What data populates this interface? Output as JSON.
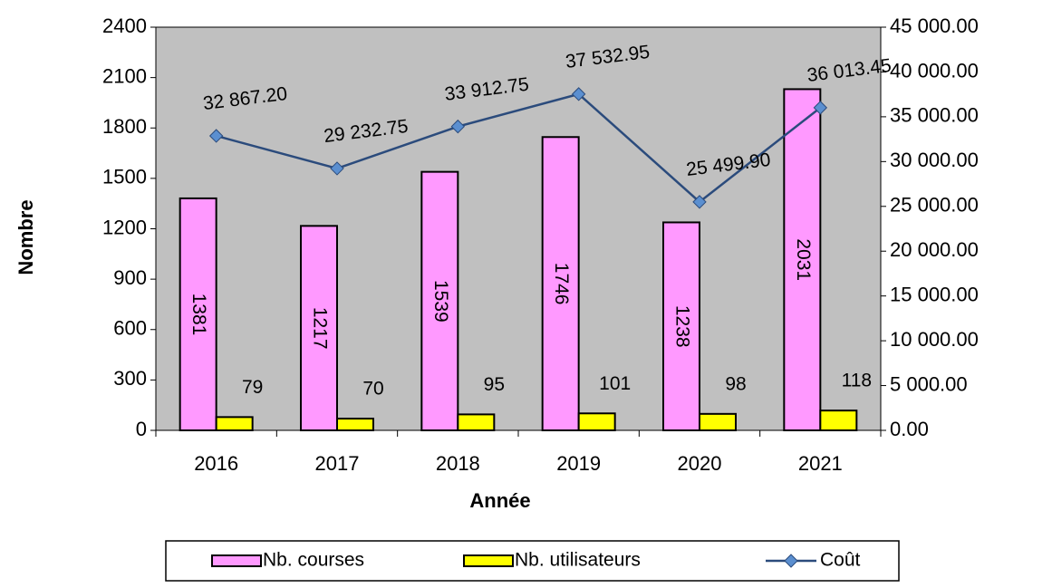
{
  "chart_data": {
    "type": "bar",
    "categories": [
      "2016",
      "2017",
      "2018",
      "2019",
      "2020",
      "2021"
    ],
    "x_label": "Année",
    "y_label": "Nombre",
    "series": [
      {
        "name": "Nb. courses",
        "color": "#ff99ff",
        "values": [
          1381,
          1217,
          1539,
          1746,
          1238,
          2031
        ]
      },
      {
        "name": "Nb. utilisateurs",
        "color": "#ffff00",
        "values": [
          79,
          70,
          95,
          101,
          98,
          118
        ]
      },
      {
        "name": "Coût",
        "color": "#2b4b7c",
        "type": "line",
        "axis": "y2",
        "values": [
          32867.2,
          29232.75,
          33912.75,
          37532.95,
          25499.9,
          36013.45
        ],
        "value_labels": [
          "32 867.20",
          "29 232.75",
          "33 912.75",
          "37 532.95",
          "25 499.90",
          "36 013.45"
        ]
      }
    ],
    "ylim": [
      0,
      2400
    ],
    "yticks": [
      0,
      300,
      600,
      900,
      1200,
      1500,
      1800,
      2100,
      2400
    ],
    "y2lim": [
      0,
      45000
    ],
    "y2ticks": [
      {
        "value": 0,
        "label": "0.00"
      },
      {
        "value": 5000,
        "label": "5 000.00"
      },
      {
        "value": 10000,
        "label": "10 000.00"
      },
      {
        "value": 15000,
        "label": "15 000.00"
      },
      {
        "value": 20000,
        "label": "20 000.00"
      },
      {
        "value": 25000,
        "label": "25 000.00"
      },
      {
        "value": 30000,
        "label": "30 000.00"
      },
      {
        "value": 35000,
        "label": "35 000.00"
      },
      {
        "value": 40000,
        "label": "40 000.00"
      },
      {
        "value": 45000,
        "label": "45 000.00"
      }
    ],
    "plot_background": "#c0c0c0",
    "legend": "bottom"
  }
}
